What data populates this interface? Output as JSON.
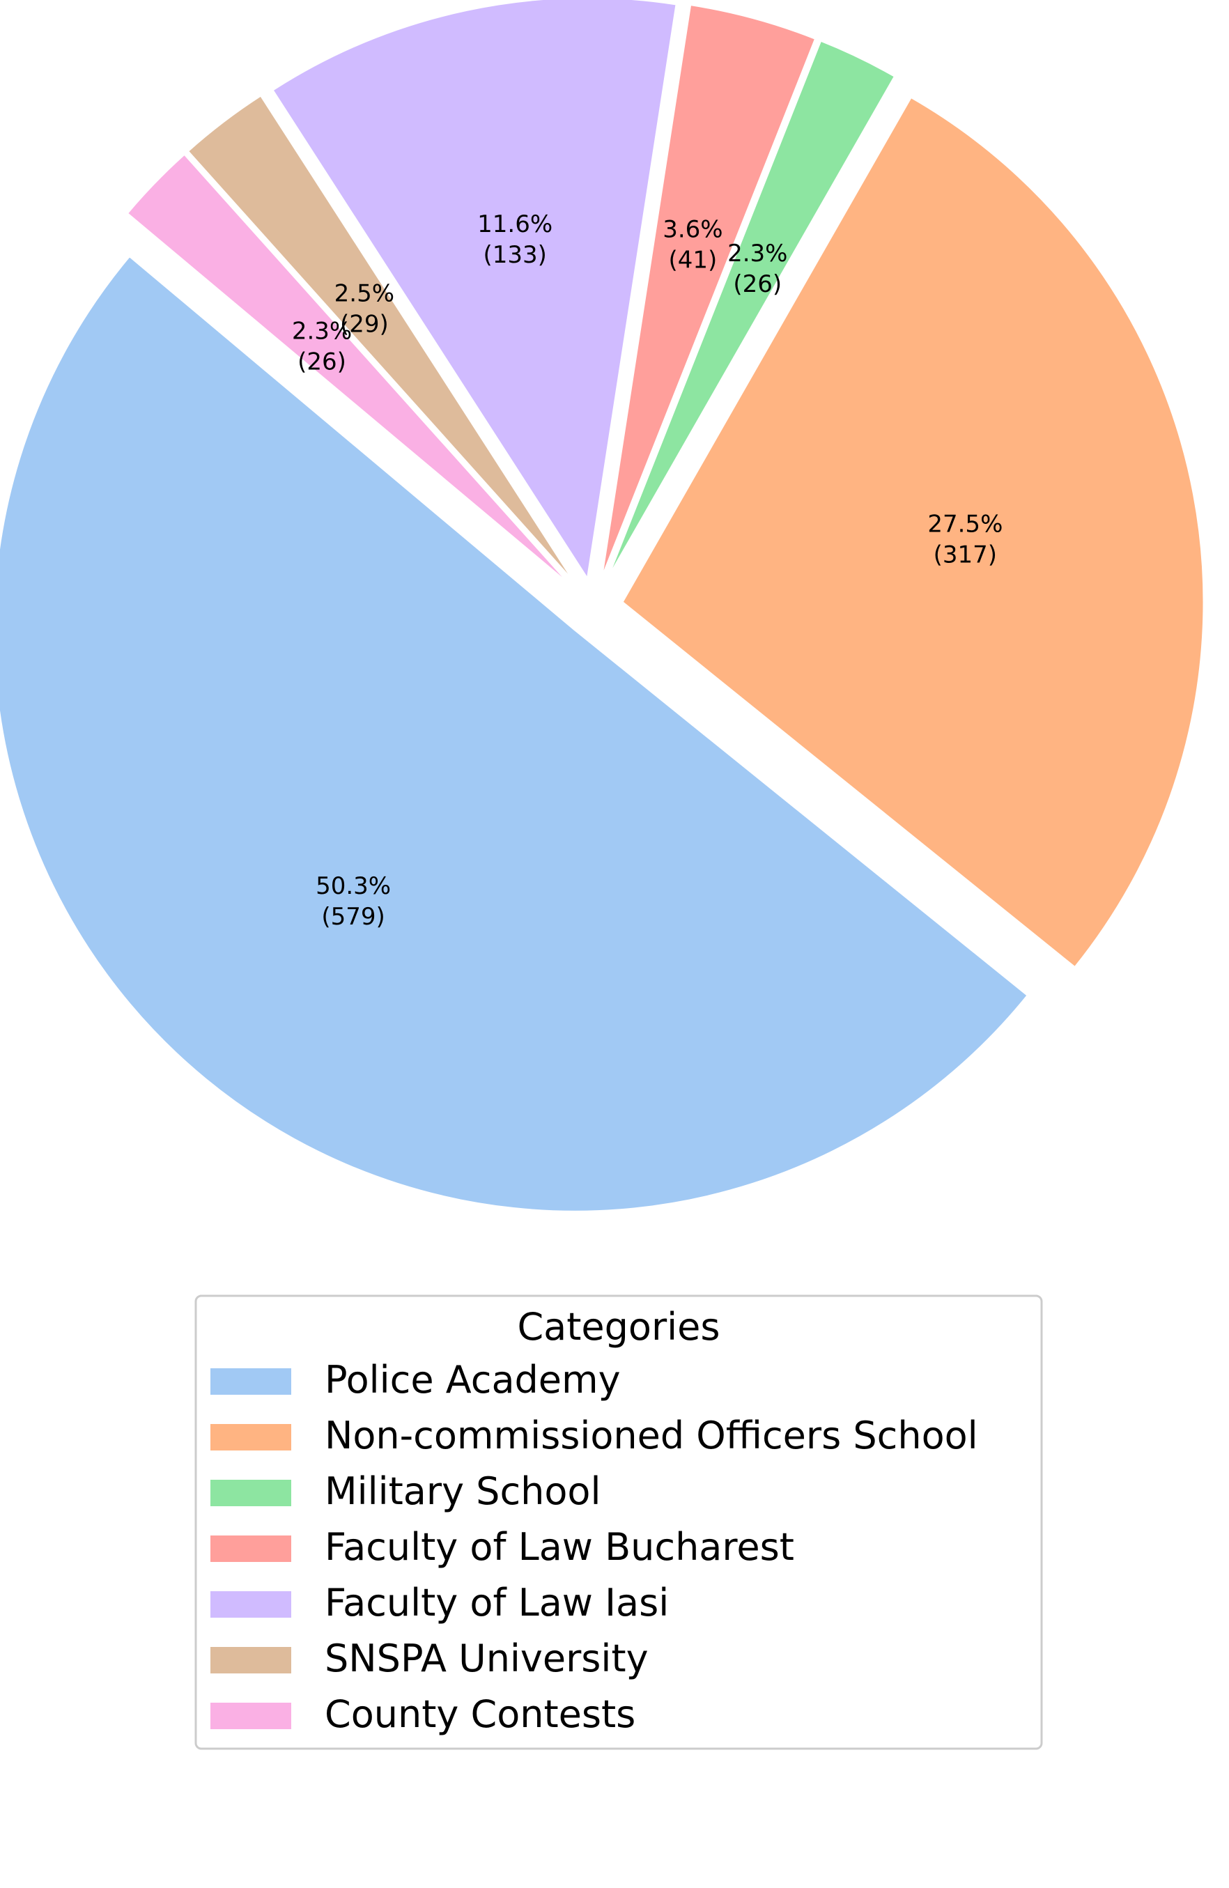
{
  "chart_data": {
    "type": "pie",
    "title": "",
    "slices": [
      {
        "label": "Police Academy",
        "value": 579,
        "percent_label": "50.3%",
        "count_label": "(579)",
        "color": "#a1c9f4"
      },
      {
        "label": "Non-commissioned Officers School",
        "value": 317,
        "percent_label": "27.5%",
        "count_label": "(317)",
        "color": "#ffb482"
      },
      {
        "label": "Military School",
        "value": 26,
        "percent_label": "2.3%",
        "count_label": "(26)",
        "color": "#8de5a1"
      },
      {
        "label": "Faculty of Law Bucharest",
        "value": 41,
        "percent_label": "3.6%",
        "count_label": "(41)",
        "color": "#ff9f9b"
      },
      {
        "label": "Faculty of Law Iasi",
        "value": 133,
        "percent_label": "11.6%",
        "count_label": "(133)",
        "color": "#d0bbff"
      },
      {
        "label": "SNSPA University",
        "value": 29,
        "percent_label": "2.5%",
        "count_label": "(29)",
        "color": "#debb9b"
      },
      {
        "label": "County Contests",
        "value": 26,
        "percent_label": "2.3%",
        "count_label": "(26)",
        "color": "#fab0e4"
      }
    ],
    "legend": {
      "title": "Categories",
      "placement": "below"
    }
  }
}
